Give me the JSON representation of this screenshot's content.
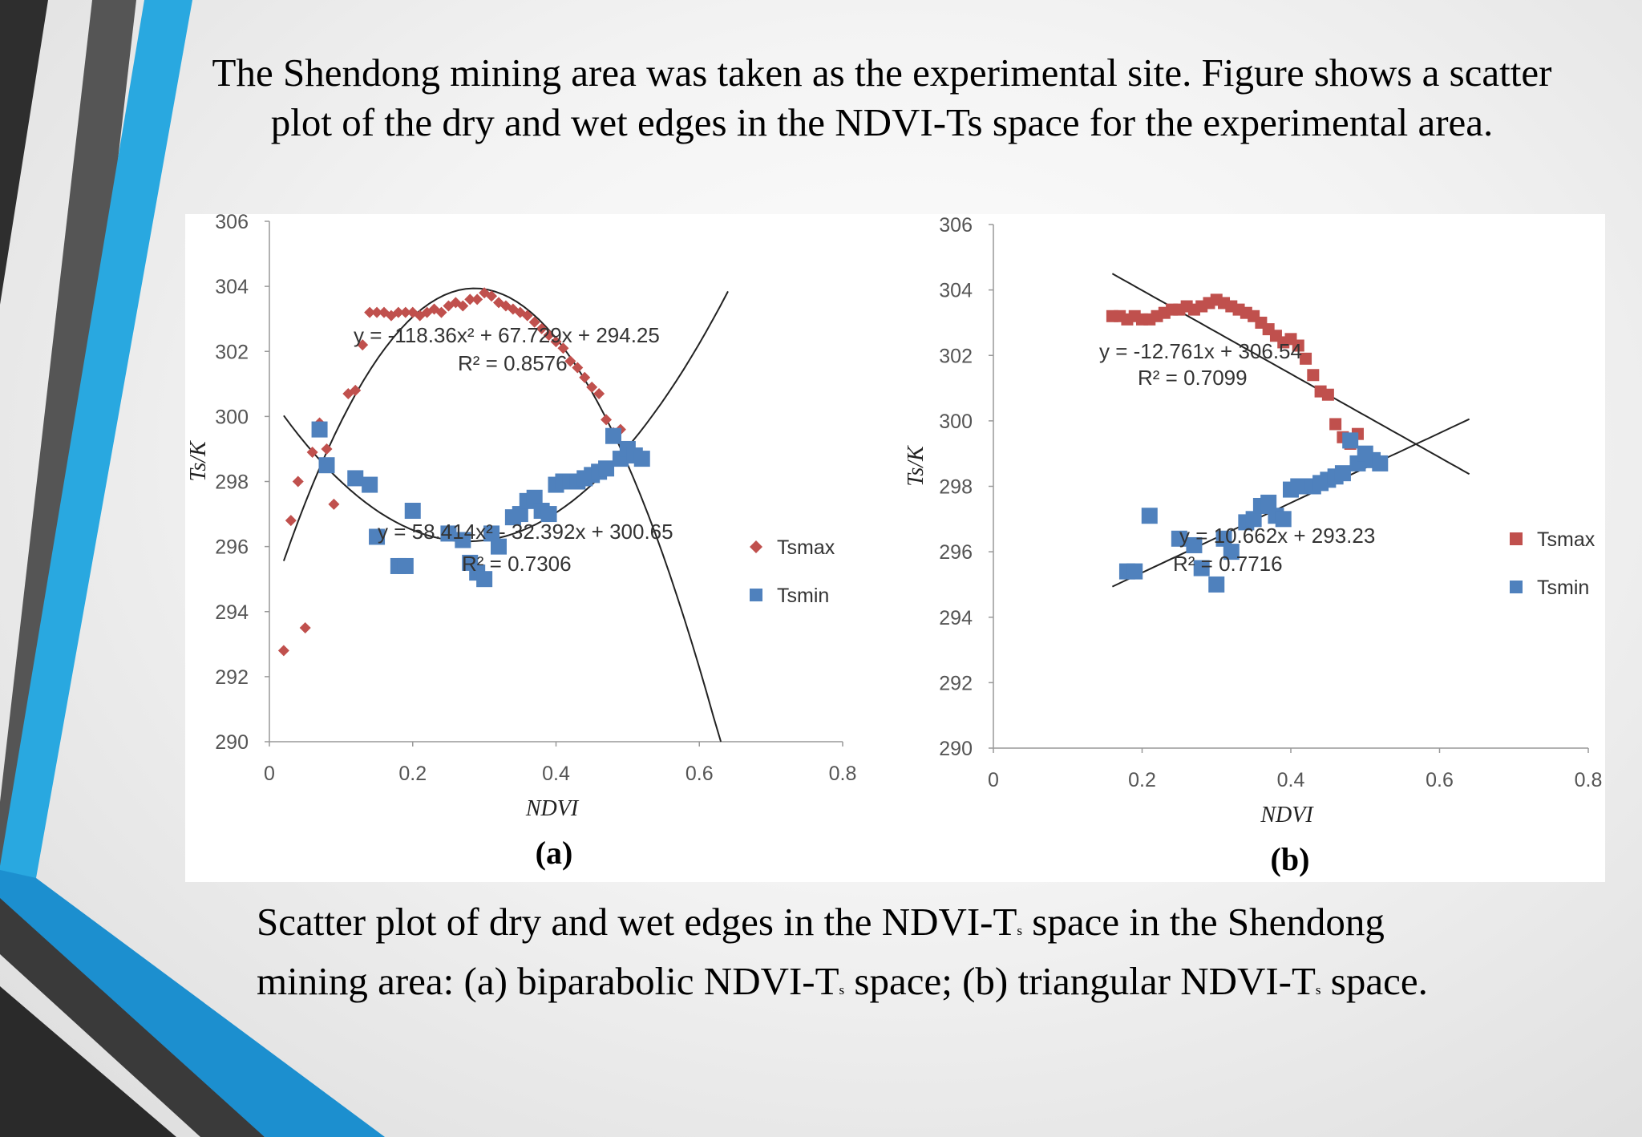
{
  "slide": {
    "heading": "The Shendong mining area was taken as the experimental site. Figure shows a scatter plot of the dry and wet edges in the NDVI-Ts space for the experimental area.",
    "caption": {
      "line1_a": "Scatter plot of dry and wet edges in the NDVI-T",
      "line1_b": "space in the Shendong",
      "line2_a": "mining area: (a) biparabolic NDVI-T",
      "line2_b": "space; (b) triangular NDVI-T",
      "line2_c": "space.",
      "subscript": "s"
    },
    "colors": {
      "tsmax": "#c0504d",
      "tsmin": "#4f81bd",
      "accent_blue": "#29a8e0",
      "dark_gray": "#444444"
    }
  },
  "chart_data": [
    {
      "type": "scatter",
      "panel_label": "(a)",
      "xlabel": "NDVI",
      "ylabel": "Ts/K",
      "xlim": [
        0,
        0.8
      ],
      "ylim": [
        290,
        306
      ],
      "x_ticks": [
        "0",
        "0.2",
        "0.4",
        "0.6",
        "0.8"
      ],
      "y_ticks": [
        "290",
        "292",
        "294",
        "296",
        "298",
        "300",
        "302",
        "304",
        "306"
      ],
      "legend": {
        "position": "right",
        "entries": [
          "Tsmax",
          "Tsmin"
        ]
      },
      "series": [
        {
          "name": "Tsmax",
          "marker": "diamond",
          "points": [
            [
              0.02,
              292.8
            ],
            [
              0.03,
              296.8
            ],
            [
              0.04,
              298.0
            ],
            [
              0.05,
              293.5
            ],
            [
              0.06,
              298.9
            ],
            [
              0.07,
              299.8
            ],
            [
              0.08,
              299.0
            ],
            [
              0.09,
              297.3
            ],
            [
              0.11,
              300.7
            ],
            [
              0.12,
              300.8
            ],
            [
              0.13,
              302.2
            ],
            [
              0.14,
              303.2
            ],
            [
              0.15,
              303.2
            ],
            [
              0.16,
              303.2
            ],
            [
              0.17,
              303.1
            ],
            [
              0.18,
              303.2
            ],
            [
              0.19,
              303.2
            ],
            [
              0.2,
              303.2
            ],
            [
              0.21,
              303.1
            ],
            [
              0.22,
              303.2
            ],
            [
              0.23,
              303.3
            ],
            [
              0.24,
              303.2
            ],
            [
              0.25,
              303.4
            ],
            [
              0.26,
              303.5
            ],
            [
              0.27,
              303.4
            ],
            [
              0.28,
              303.6
            ],
            [
              0.29,
              303.6
            ],
            [
              0.3,
              303.8
            ],
            [
              0.31,
              303.7
            ],
            [
              0.32,
              303.5
            ],
            [
              0.33,
              303.4
            ],
            [
              0.34,
              303.3
            ],
            [
              0.35,
              303.2
            ],
            [
              0.36,
              303.1
            ],
            [
              0.37,
              302.9
            ],
            [
              0.38,
              302.7
            ],
            [
              0.39,
              302.5
            ],
            [
              0.4,
              302.3
            ],
            [
              0.41,
              302.1
            ],
            [
              0.42,
              301.7
            ],
            [
              0.43,
              301.5
            ],
            [
              0.44,
              301.2
            ],
            [
              0.45,
              300.9
            ],
            [
              0.46,
              300.7
            ],
            [
              0.47,
              299.9
            ],
            [
              0.48,
              299.5
            ],
            [
              0.49,
              299.6
            ]
          ]
        },
        {
          "name": "Tsmin",
          "marker": "square",
          "points": [
            [
              0.07,
              299.6
            ],
            [
              0.08,
              298.5
            ],
            [
              0.12,
              298.1
            ],
            [
              0.14,
              297.9
            ],
            [
              0.15,
              296.3
            ],
            [
              0.18,
              295.4
            ],
            [
              0.19,
              295.4
            ],
            [
              0.2,
              297.1
            ],
            [
              0.25,
              296.4
            ],
            [
              0.27,
              296.2
            ],
            [
              0.28,
              295.5
            ],
            [
              0.29,
              295.2
            ],
            [
              0.3,
              295.0
            ],
            [
              0.31,
              296.4
            ],
            [
              0.32,
              296.0
            ],
            [
              0.34,
              296.9
            ],
            [
              0.35,
              297.0
            ],
            [
              0.36,
              297.4
            ],
            [
              0.37,
              297.5
            ],
            [
              0.38,
              297.1
            ],
            [
              0.39,
              297.0
            ],
            [
              0.4,
              297.9
            ],
            [
              0.41,
              298.0
            ],
            [
              0.42,
              298.0
            ],
            [
              0.43,
              298.0
            ],
            [
              0.44,
              298.1
            ],
            [
              0.45,
              298.2
            ],
            [
              0.46,
              298.3
            ],
            [
              0.47,
              298.4
            ],
            [
              0.48,
              299.4
            ],
            [
              0.49,
              298.7
            ],
            [
              0.5,
              299.0
            ],
            [
              0.51,
              298.8
            ],
            [
              0.52,
              298.7
            ]
          ]
        }
      ],
      "fits": [
        {
          "series": "Tsmax",
          "equation": "y = -118.36x² + 67.729x + 294.25",
          "r2": "R² = 0.8576",
          "coef": [
            -118.36,
            67.729,
            294.25
          ],
          "x_range": [
            0.02,
            0.63
          ]
        },
        {
          "series": "Tsmin",
          "equation": "y = 58.414x² - 32.392x + 300.65",
          "r2": "R² = 0.7306",
          "coef": [
            58.414,
            -32.392,
            300.65
          ],
          "x_range": [
            0.02,
            0.64
          ]
        }
      ]
    },
    {
      "type": "scatter",
      "panel_label": "(b)",
      "xlabel": "NDVI",
      "ylabel": "Ts/K",
      "xlim": [
        0,
        0.8
      ],
      "ylim": [
        290,
        306
      ],
      "x_ticks": [
        "0",
        "0.2",
        "0.4",
        "0.6",
        "0.8"
      ],
      "y_ticks": [
        "290",
        "292",
        "294",
        "296",
        "298",
        "300",
        "302",
        "304",
        "306"
      ],
      "legend": {
        "position": "right",
        "entries": [
          "Tsmax",
          "Tsmin"
        ]
      },
      "series": [
        {
          "name": "Tsmax",
          "marker": "square",
          "points": [
            [
              0.16,
              303.2
            ],
            [
              0.17,
              303.2
            ],
            [
              0.18,
              303.1
            ],
            [
              0.19,
              303.2
            ],
            [
              0.2,
              303.1
            ],
            [
              0.21,
              303.1
            ],
            [
              0.22,
              303.2
            ],
            [
              0.23,
              303.3
            ],
            [
              0.24,
              303.4
            ],
            [
              0.25,
              303.4
            ],
            [
              0.26,
              303.5
            ],
            [
              0.27,
              303.4
            ],
            [
              0.28,
              303.5
            ],
            [
              0.29,
              303.6
            ],
            [
              0.3,
              303.7
            ],
            [
              0.31,
              303.6
            ],
            [
              0.32,
              303.5
            ],
            [
              0.33,
              303.4
            ],
            [
              0.34,
              303.3
            ],
            [
              0.35,
              303.2
            ],
            [
              0.36,
              303.0
            ],
            [
              0.37,
              302.8
            ],
            [
              0.38,
              302.6
            ],
            [
              0.39,
              302.4
            ],
            [
              0.4,
              302.5
            ],
            [
              0.41,
              302.3
            ],
            [
              0.42,
              301.9
            ],
            [
              0.43,
              301.4
            ],
            [
              0.44,
              300.9
            ],
            [
              0.45,
              300.8
            ],
            [
              0.46,
              299.9
            ],
            [
              0.47,
              299.5
            ],
            [
              0.48,
              299.3
            ],
            [
              0.49,
              299.6
            ],
            [
              0.5,
              299.0
            ]
          ]
        },
        {
          "name": "Tsmin",
          "marker": "square",
          "points": [
            [
              0.18,
              295.4
            ],
            [
              0.19,
              295.4
            ],
            [
              0.21,
              297.1
            ],
            [
              0.25,
              296.4
            ],
            [
              0.27,
              296.2
            ],
            [
              0.28,
              295.5
            ],
            [
              0.3,
              295.0
            ],
            [
              0.31,
              296.4
            ],
            [
              0.32,
              296.0
            ],
            [
              0.34,
              296.9
            ],
            [
              0.35,
              297.0
            ],
            [
              0.36,
              297.4
            ],
            [
              0.37,
              297.5
            ],
            [
              0.38,
              297.1
            ],
            [
              0.39,
              297.0
            ],
            [
              0.4,
              297.9
            ],
            [
              0.41,
              298.0
            ],
            [
              0.42,
              298.0
            ],
            [
              0.43,
              298.0
            ],
            [
              0.44,
              298.1
            ],
            [
              0.45,
              298.2
            ],
            [
              0.46,
              298.3
            ],
            [
              0.47,
              298.4
            ],
            [
              0.48,
              299.4
            ],
            [
              0.49,
              298.7
            ],
            [
              0.5,
              299.0
            ],
            [
              0.51,
              298.8
            ],
            [
              0.52,
              298.7
            ]
          ]
        }
      ],
      "fits": [
        {
          "series": "Tsmax",
          "equation": "y = -12.761x + 306.54",
          "r2": "R² = 0.7099",
          "coef": [
            0,
            -12.761,
            306.54
          ],
          "x_range": [
            0.16,
            0.64
          ]
        },
        {
          "series": "Tsmin",
          "equation": "y = 10.662x + 293.23",
          "r2": "R² = 0.7716",
          "coef": [
            0,
            10.662,
            293.23
          ],
          "x_range": [
            0.16,
            0.64
          ]
        }
      ]
    }
  ]
}
